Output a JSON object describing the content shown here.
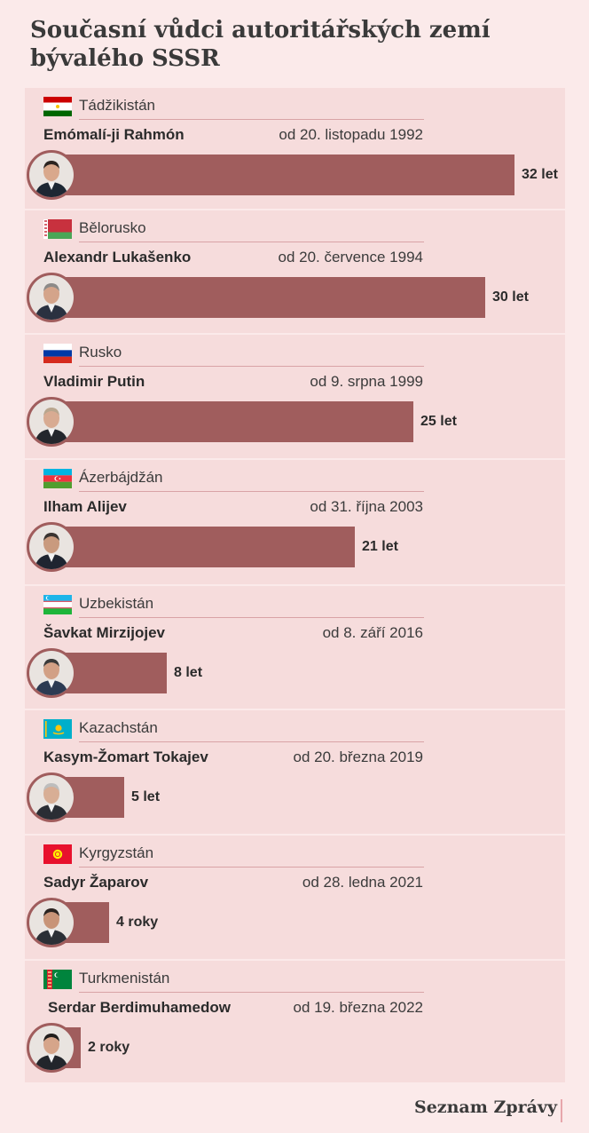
{
  "chart_data": {
    "type": "bar",
    "title": "Současní vůdci autoritářských zemí bývalého SSSR",
    "categories": [
      "Tádžikistán",
      "Bělorusko",
      "Rusko",
      "Ázerbájdžán",
      "Uzbekistán",
      "Kazachstán",
      "Kyrgyzstán",
      "Turkmenistán"
    ],
    "values": [
      32,
      30,
      25,
      21,
      8,
      5,
      4,
      2
    ],
    "rows": [
      {
        "country": "Tádžikistán",
        "leader": "Emómalí-ji Rahmón",
        "since": "od 20. listopadu 1992",
        "years": 32,
        "label": "32 let",
        "flag": "flag-tajikistan-icon"
      },
      {
        "country": "Bělorusko",
        "leader": "Alexandr Lukašenko",
        "since": "od 20. července 1994",
        "years": 30,
        "label": "30 let",
        "flag": "flag-belarus-icon"
      },
      {
        "country": "Rusko",
        "leader": "Vladimir Putin",
        "since": "od 9. srpna 1999",
        "years": 25,
        "label": "25 let",
        "flag": "flag-russia-icon"
      },
      {
        "country": "Ázerbájdžán",
        "leader": "Ilham Alijev",
        "since": "od 31. října 2003",
        "years": 21,
        "label": "21 let",
        "flag": "flag-azerbaijan-icon"
      },
      {
        "country": "Uzbekistán",
        "leader": "Šavkat Mirzijojev",
        "since": "od 8. září 2016",
        "years": 8,
        "label": "8 let",
        "flag": "flag-uzbekistan-icon"
      },
      {
        "country": "Kazachstán",
        "leader": "Kasym-Žomart Tokajev",
        "since": "od 20. března 2019",
        "years": 5,
        "label": "5 let",
        "flag": "flag-kazakhstan-icon"
      },
      {
        "country": "Kyrgyzstán",
        "leader": "Sadyr Žaparov",
        "since": "od 28. ledna 2021",
        "years": 4,
        "label": "4 roky",
        "flag": "flag-kyrgyzstan-icon"
      },
      {
        "country": "Turkmenistán",
        "leader": "Serdar Berdimuhamedow",
        "since": "od 19. března 2022",
        "years": 2,
        "label": "2 roky",
        "flag": "flag-turkmenistan-icon"
      }
    ],
    "bar_color": "#a05d5d",
    "background": "#fbeaea",
    "card_color": "#f6dcdc"
  },
  "footer": {
    "brand": "Seznam Zprávy"
  }
}
